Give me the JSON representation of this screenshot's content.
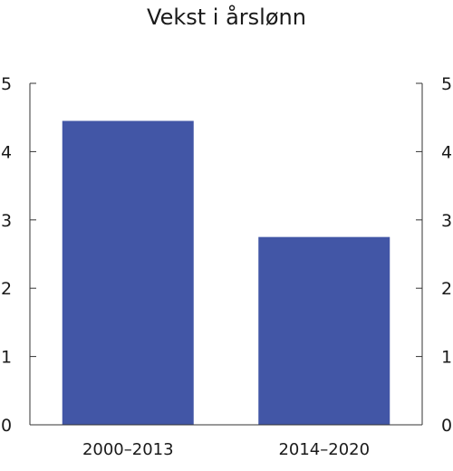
{
  "chart_data": {
    "type": "bar",
    "title": "Vekst i årslønn",
    "categories": [
      "2000–2013",
      "2014–2020"
    ],
    "values": [
      4.45,
      2.75
    ],
    "ylim": [
      0,
      5
    ],
    "yticks": [
      0,
      1,
      2,
      3,
      4,
      5
    ],
    "y_axis_both_sides": true,
    "grid": false,
    "bar_color": "#4256a6",
    "axis_color": "#333333"
  }
}
